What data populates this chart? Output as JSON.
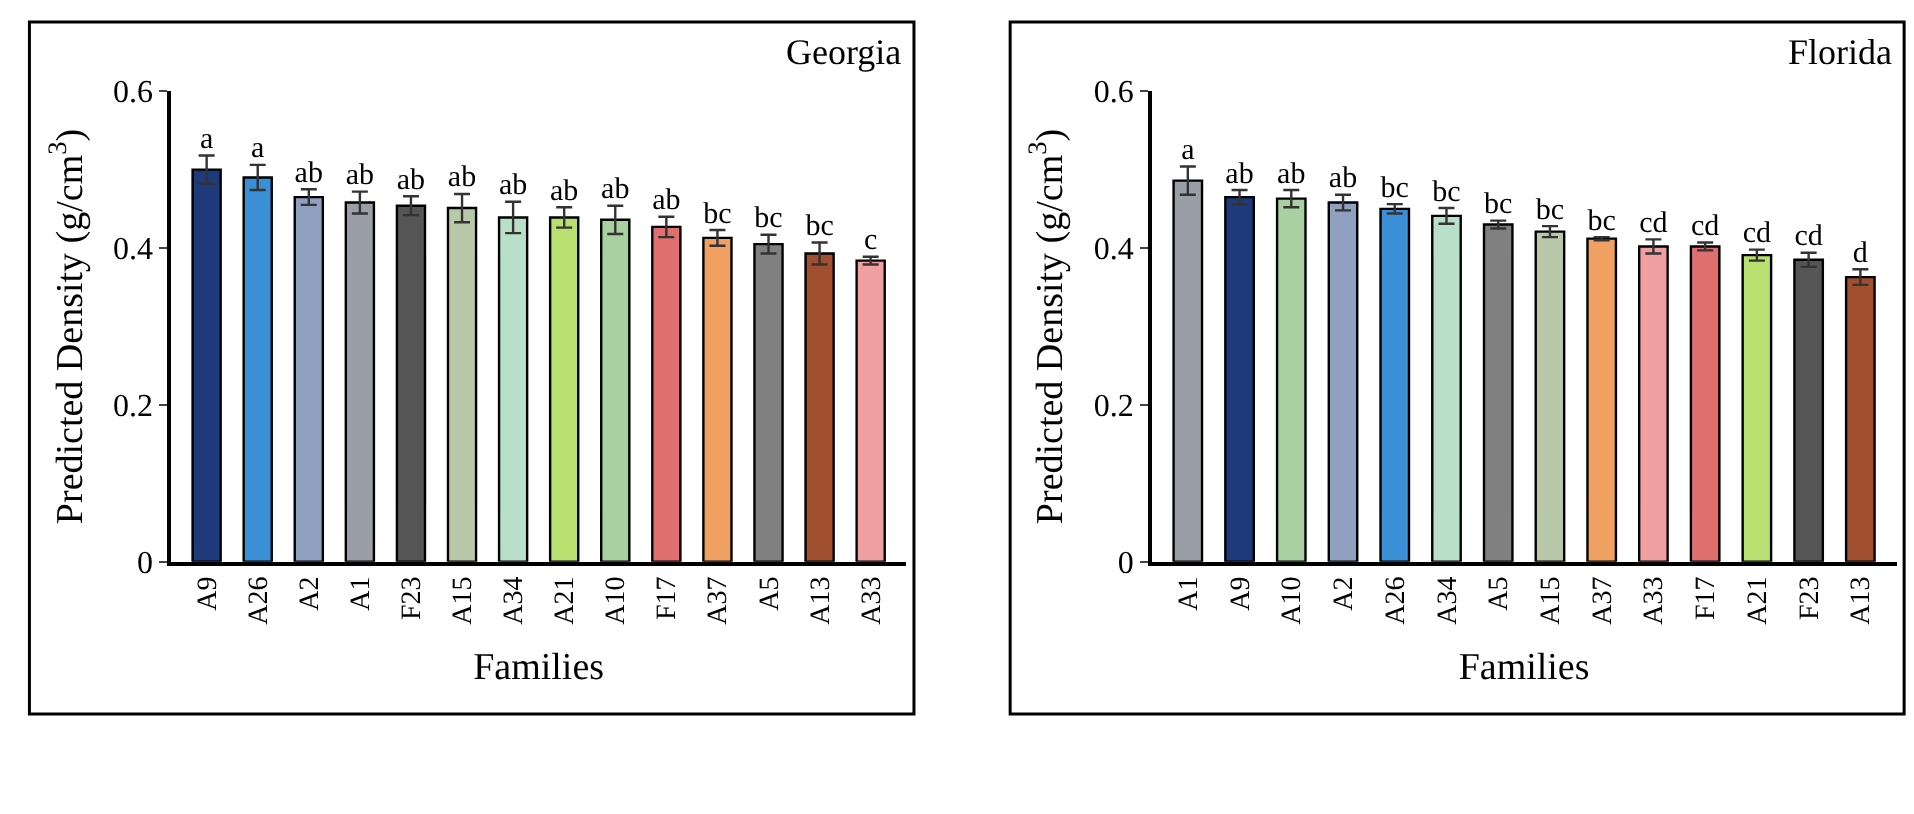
{
  "chart_data": [
    {
      "type": "bar",
      "title": "Georgia",
      "xlabel": "Families",
      "ylabel": "Predicted Density (g/cm$^{3}$)",
      "categories": [
        "A9",
        "A26",
        "A2",
        "A1",
        "F23",
        "A15",
        "A34",
        "A21",
        "A10",
        "F17",
        "A37",
        "A5",
        "A13",
        "A33"
      ],
      "values": [
        0.5,
        0.49,
        0.465,
        0.458,
        0.454,
        0.451,
        0.439,
        0.439,
        0.436,
        0.427,
        0.413,
        0.405,
        0.393,
        0.384
      ],
      "errors": [
        0.018,
        0.016,
        0.01,
        0.014,
        0.012,
        0.018,
        0.02,
        0.013,
        0.018,
        0.013,
        0.01,
        0.012,
        0.014,
        0.005
      ],
      "value_labels": [
        "a",
        "a",
        "ab",
        "ab",
        "ab",
        "ab",
        "ab",
        "ab",
        "ab",
        "ab",
        "bc",
        "bc",
        "bc",
        "c"
      ],
      "colors": [
        "#1f3a7a",
        "#3a8fd6",
        "#8fa0c0",
        "#9a9ea6",
        "#555555",
        "#b8c8a8",
        "#b8e0c8",
        "#b8e070",
        "#a8d0a0",
        "#e07070",
        "#f0a060",
        "#808080",
        "#a05030",
        "#f0a0a0"
      ],
      "ylim": [
        0,
        0.6
      ],
      "yticks": [
        0,
        0.2,
        0.4,
        0.6
      ]
    },
    {
      "type": "bar",
      "title": "Florida",
      "xlabel": "Families",
      "ylabel": "Predicted Density (g/cm$^{3}$)",
      "categories": [
        "A1",
        "A9",
        "A10",
        "A2",
        "A26",
        "A34",
        "A5",
        "A15",
        "A37",
        "A33",
        "F17",
        "A21",
        "F23",
        "A13"
      ],
      "values": [
        0.486,
        0.465,
        0.463,
        0.458,
        0.45,
        0.441,
        0.43,
        0.421,
        0.412,
        0.402,
        0.402,
        0.391,
        0.385,
        0.363
      ],
      "errors": [
        0.018,
        0.009,
        0.011,
        0.01,
        0.006,
        0.01,
        0.005,
        0.007,
        0.002,
        0.009,
        0.005,
        0.007,
        0.009,
        0.01
      ],
      "value_labels": [
        "a",
        "ab",
        "ab",
        "ab",
        "bc",
        "bc",
        "bc",
        "bc",
        "bc",
        "cd",
        "cd",
        "cd",
        "cd",
        "d"
      ],
      "colors": [
        "#9a9ea6",
        "#1f3a7a",
        "#a8d0a0",
        "#8fa0c0",
        "#3a8fd6",
        "#b8e0c8",
        "#808080",
        "#b8c8a8",
        "#f0a060",
        "#f0a0a0",
        "#e07070",
        "#b8e070",
        "#555555",
        "#a05030"
      ],
      "ylim": [
        0,
        0.6
      ],
      "yticks": [
        0,
        0.2,
        0.4,
        0.6
      ]
    }
  ]
}
